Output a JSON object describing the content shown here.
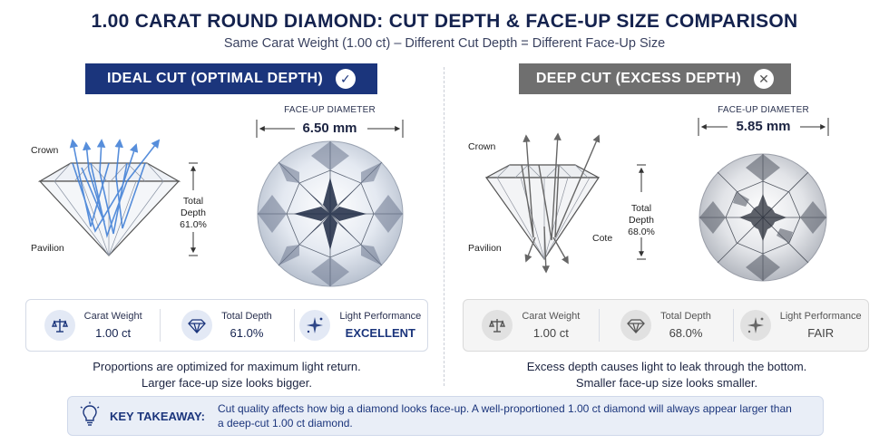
{
  "title": "1.00 CARAT ROUND DIAMOND: CUT DEPTH & FACE-UP SIZE COMPARISON",
  "subtitle": "Same Carat Weight (1.00 ct) – Different Cut Depth = Different Face-Up Size",
  "ideal": {
    "banner": "IDEAL CUT (OPTIMAL DEPTH)",
    "banner_icon": "check-icon",
    "crown_label": "Crown",
    "pavilion_label": "Pavilion",
    "depth_label_1": "Total",
    "depth_label_2": "Depth",
    "depth_value": "61.0%",
    "face_up_title": "FACE-UP DIAMETER",
    "face_up_value": "6.50 mm",
    "stats": {
      "carat_label": "Carat Weight",
      "carat_value": "1.00 ct",
      "depth_label": "Total Depth",
      "depth_value": "61.0%",
      "light_label": "Light Performance",
      "light_value": "EXCELLENT"
    },
    "caption_1": "Proportions are optimized for maximum light return.",
    "caption_2": "Larger face-up size looks bigger.",
    "accent": "#1b357c"
  },
  "deep": {
    "banner": "DEEP CUT (EXCESS DEPTH)",
    "banner_icon": "close-icon",
    "crown_label": "Crown",
    "pavilion_label": "Pavilion",
    "cote_label": "Cote",
    "depth_label_1": "Total",
    "depth_label_2": "Depth",
    "depth_value": "68.0%",
    "face_up_title": "FACE-UP DIAMETER",
    "face_up_value": "5.85 mm",
    "stats": {
      "carat_label": "Carat Weight",
      "carat_value": "1.00 ct",
      "depth_label": "Total Depth",
      "depth_value": "68.0%",
      "light_label": "Light Performance",
      "light_value": "FAIR"
    },
    "caption_1": "Excess depth causes light to leak through the bottom.",
    "caption_2": "Smaller face-up size looks smaller.",
    "accent": "#6f6f6f"
  },
  "takeaway": {
    "label": "KEY TAKEAWAY:",
    "text": "Cut quality affects how big a diamond looks face-up. A well-proportioned 1.00 ct diamond will always appear larger than a deep-cut 1.00 ct diamond."
  }
}
